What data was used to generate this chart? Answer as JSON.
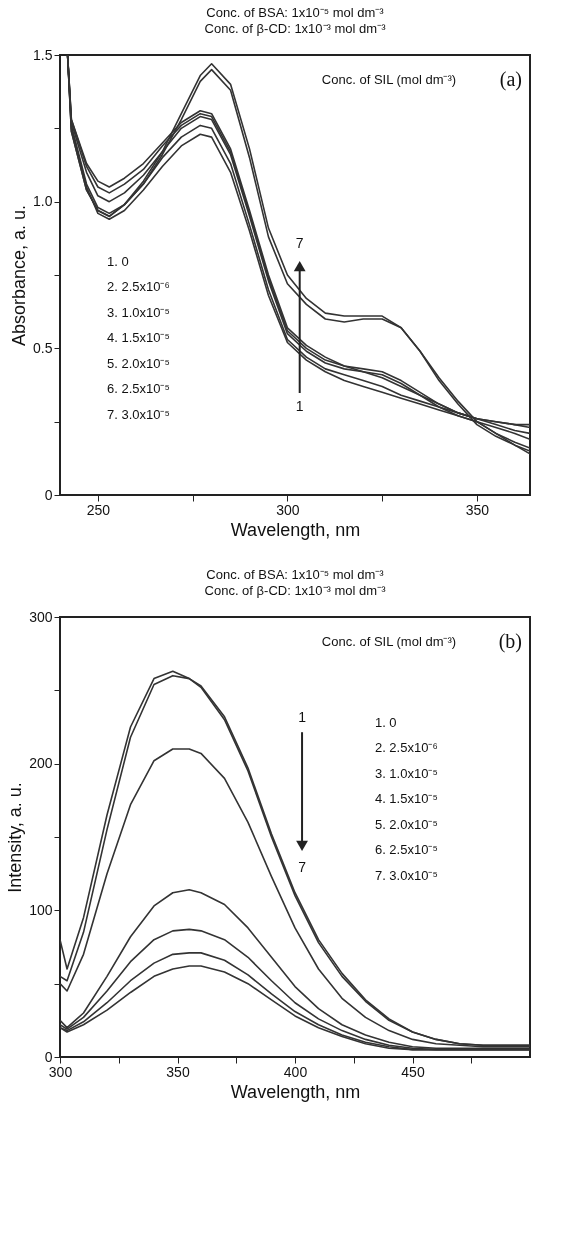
{
  "chart_data": [
    {
      "type": "line",
      "title": "Conc. of BSA: 1x10⁻⁵ mol dm⁻³",
      "subtitle": "Conc. of β-CD: 1x10⁻³ mol dm⁻³",
      "xlabel": "Wavelength, nm",
      "ylabel": "Absorbance, a. u.",
      "annotations": [
        "Conc. of SIL (mol dm⁻³)",
        "(a)",
        "1. 0",
        "2. 2.5x10⁻⁶",
        "3. 1.0x10⁻⁵",
        "4. 1.5x10⁻⁵",
        "5. 2.0x10⁻⁵",
        "6. 2.5x10⁻⁵",
        "7. 3.0x10⁻⁵",
        "1",
        "7"
      ],
      "x": [
        242,
        243,
        247,
        250,
        253,
        257,
        262,
        267,
        272,
        277,
        280,
        285,
        290,
        295,
        300,
        305,
        310,
        315,
        320,
        325,
        330,
        335,
        340,
        345,
        350,
        355,
        360,
        364
      ],
      "series": [
        {
          "color": "#333333",
          "values": [
            1.5,
            1.25,
            1.05,
            0.96,
            0.94,
            0.97,
            1.04,
            1.12,
            1.19,
            1.23,
            1.22,
            1.1,
            0.9,
            0.68,
            0.52,
            0.46,
            0.42,
            0.39,
            0.37,
            0.35,
            0.33,
            0.31,
            0.29,
            0.27,
            0.25,
            0.23,
            0.21,
            0.19
          ]
        },
        {
          "color": "#333333",
          "values": [
            1.5,
            1.26,
            1.06,
            0.98,
            0.96,
            0.99,
            1.06,
            1.15,
            1.22,
            1.26,
            1.25,
            1.13,
            0.92,
            0.7,
            0.53,
            0.47,
            0.43,
            0.41,
            0.39,
            0.37,
            0.34,
            0.32,
            0.3,
            0.28,
            0.26,
            0.24,
            0.22,
            0.21
          ]
        },
        {
          "color": "#333333",
          "values": [
            1.5,
            1.27,
            1.1,
            1.02,
            1.0,
            1.03,
            1.09,
            1.17,
            1.25,
            1.29,
            1.28,
            1.16,
            0.95,
            0.73,
            0.55,
            0.49,
            0.45,
            0.43,
            0.42,
            0.41,
            0.38,
            0.34,
            0.31,
            0.28,
            0.26,
            0.25,
            0.24,
            0.24
          ]
        },
        {
          "color": "#333333",
          "values": [
            1.5,
            1.28,
            1.12,
            1.05,
            1.03,
            1.06,
            1.11,
            1.19,
            1.26,
            1.3,
            1.29,
            1.17,
            0.96,
            0.74,
            0.56,
            0.5,
            0.46,
            0.44,
            0.43,
            0.42,
            0.39,
            0.35,
            0.31,
            0.28,
            0.26,
            0.25,
            0.24,
            0.23
          ]
        },
        {
          "color": "#333333",
          "values": [
            1.5,
            1.28,
            1.13,
            1.07,
            1.05,
            1.08,
            1.13,
            1.2,
            1.27,
            1.31,
            1.3,
            1.18,
            0.97,
            0.75,
            0.57,
            0.51,
            0.47,
            0.44,
            0.42,
            0.4,
            0.37,
            0.34,
            0.3,
            0.27,
            0.25,
            0.21,
            0.17,
            0.14
          ]
        },
        {
          "color": "#333333",
          "values": [
            1.5,
            1.24,
            1.04,
            0.97,
            0.95,
            0.99,
            1.06,
            1.16,
            1.28,
            1.41,
            1.45,
            1.38,
            1.15,
            0.88,
            0.72,
            0.65,
            0.6,
            0.59,
            0.6,
            0.6,
            0.57,
            0.49,
            0.4,
            0.32,
            0.25,
            0.21,
            0.18,
            0.16
          ]
        },
        {
          "color": "#333333",
          "values": [
            1.5,
            1.24,
            1.04,
            0.97,
            0.95,
            0.99,
            1.07,
            1.17,
            1.3,
            1.43,
            1.47,
            1.4,
            1.18,
            0.91,
            0.75,
            0.67,
            0.62,
            0.61,
            0.61,
            0.61,
            0.57,
            0.49,
            0.39,
            0.31,
            0.24,
            0.2,
            0.17,
            0.15
          ]
        }
      ],
      "xlim": [
        240,
        364
      ],
      "xticks": [
        250,
        {
          "value": 275,
          "label": null
        },
        300,
        {
          "value": 325,
          "label": null
        },
        350
      ],
      "ylim": [
        0,
        1.5
      ],
      "yticks": [
        0,
        {
          "value": 0.25,
          "label": null
        },
        0.5,
        {
          "value": 0.75,
          "label": null
        },
        {
          "value": 1,
          "label": "1.0"
        },
        {
          "value": 1.25,
          "label": null
        },
        1.5
      ],
      "grid": false
    },
    {
      "type": "line",
      "title": "Conc. of BSA: 1x10⁻⁵ mol dm⁻³",
      "subtitle": "Conc. of β-CD: 1x10⁻³ mol dm⁻³",
      "xlabel": "Wavelength, nm",
      "ylabel": "Intensity, a. u.",
      "annotations": [
        "Conc. of SIL (mol dm⁻³)",
        "(b)",
        "1. 0",
        "2. 2.5x10⁻⁶",
        "3. 1.0x10⁻⁵",
        "4. 1.5x10⁻⁵",
        "5. 2.0x10⁻⁵",
        "6. 2.5x10⁻⁵",
        "7. 3.0x10⁻⁵",
        "1",
        "7"
      ],
      "x": [
        300,
        303,
        310,
        320,
        330,
        340,
        348,
        355,
        360,
        370,
        380,
        390,
        400,
        410,
        420,
        430,
        440,
        450,
        460,
        470,
        480,
        490,
        500
      ],
      "series": [
        {
          "color": "#333333",
          "values": [
            80,
            60,
            95,
            165,
            225,
            258,
            263,
            258,
            252,
            230,
            195,
            150,
            110,
            78,
            55,
            38,
            25,
            17,
            12,
            9,
            8,
            8,
            8
          ]
        },
        {
          "color": "#333333",
          "values": [
            55,
            52,
            85,
            155,
            218,
            254,
            260,
            258,
            253,
            232,
            197,
            152,
            112,
            80,
            57,
            39,
            26,
            17,
            12,
            9,
            8,
            8,
            8
          ]
        },
        {
          "color": "#333333",
          "values": [
            50,
            45,
            70,
            125,
            172,
            202,
            210,
            210,
            207,
            190,
            160,
            123,
            88,
            60,
            40,
            27,
            18,
            12,
            9,
            8,
            7,
            7,
            7
          ]
        },
        {
          "color": "#333333",
          "values": [
            25,
            20,
            30,
            55,
            82,
            103,
            112,
            114,
            112,
            104,
            88,
            68,
            48,
            33,
            22,
            15,
            10,
            7,
            6,
            6,
            6,
            6,
            6
          ]
        },
        {
          "color": "#333333",
          "values": [
            22,
            19,
            27,
            45,
            65,
            80,
            86,
            87,
            86,
            80,
            68,
            52,
            37,
            26,
            18,
            12,
            8,
            6,
            5,
            5,
            5,
            5,
            5
          ]
        },
        {
          "color": "#333333",
          "values": [
            20,
            18,
            24,
            37,
            52,
            64,
            70,
            71,
            71,
            66,
            56,
            43,
            31,
            22,
            15,
            10,
            7,
            5,
            5,
            5,
            5,
            5,
            5
          ]
        },
        {
          "color": "#333333",
          "values": [
            20,
            17,
            22,
            32,
            44,
            55,
            60,
            62,
            62,
            58,
            50,
            39,
            28,
            20,
            14,
            9,
            6,
            5,
            5,
            5,
            5,
            5,
            5
          ]
        }
      ],
      "xlim": [
        300,
        500
      ],
      "xticks": [
        300,
        {
          "value": 325,
          "label": null
        },
        350,
        {
          "value": 375,
          "label": null
        },
        400,
        {
          "value": 425,
          "label": null
        },
        450,
        {
          "value": 475,
          "label": null
        }
      ],
      "ylim": [
        0,
        300
      ],
      "yticks": [
        0,
        {
          "value": 50,
          "label": null
        },
        100,
        {
          "value": 150,
          "label": null
        },
        200,
        {
          "value": 250,
          "label": null
        },
        300
      ],
      "grid": false
    }
  ]
}
